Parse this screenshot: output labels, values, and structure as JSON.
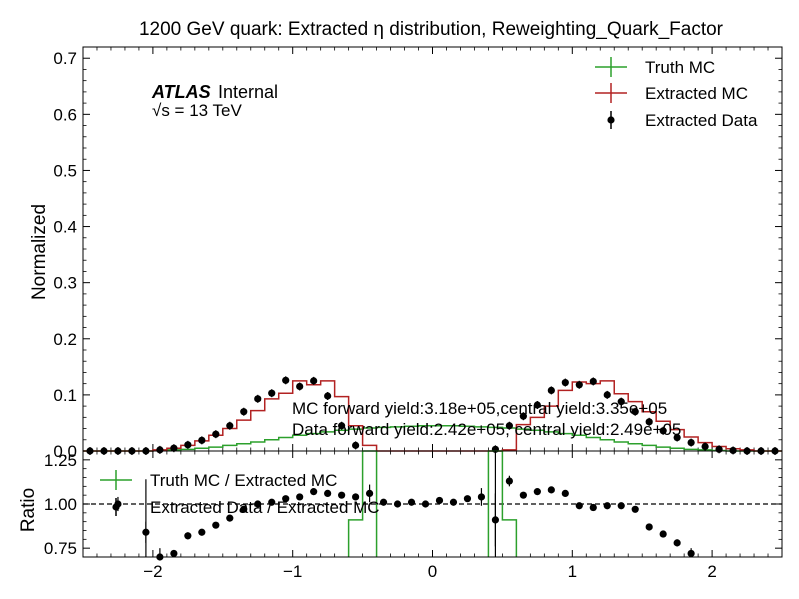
{
  "chart_data": {
    "type": "histogram",
    "title": "1200 GeV quark: Extracted η distribution, Reweighting_Quark_Factor",
    "atlas_label": "ATLAS",
    "atlas_suffix": "Internal",
    "energy_label": "√s =  13 TeV",
    "annotations": {
      "mc_yield": "MC forward yield:3.18e+05,central yield:3.35e+05",
      "data_yield": "Data forward yield:2.42e+05, central yield:2.49e+05"
    },
    "colors": {
      "truth": "#2ca02c",
      "extracted_mc": "#b22222",
      "data": "#000000"
    },
    "top_panel": {
      "ylabel": "Normalized",
      "xlim": [
        -2.5,
        2.5
      ],
      "ylim": [
        0,
        0.72
      ],
      "yticks": [
        0.0,
        0.1,
        0.2,
        0.3,
        0.4,
        0.5,
        0.6,
        0.7
      ],
      "yticklabels": [
        "0.0",
        "0.1",
        "0.2",
        "0.3",
        "0.4",
        "0.5",
        "0.6",
        "0.7"
      ],
      "legend_placement": "top-right",
      "legend": [
        "Truth MC",
        "Extracted MC",
        "Extracted Data"
      ],
      "bin_edges": [
        -2.5,
        -2.4,
        -2.3,
        -2.2,
        -2.1,
        -2.0,
        -1.9,
        -1.8,
        -1.7,
        -1.6,
        -1.5,
        -1.4,
        -1.3,
        -1.2,
        -1.1,
        -1.0,
        -0.9,
        -0.8,
        -0.7,
        -0.6,
        -0.5,
        -0.4,
        -0.3,
        -0.2,
        -0.1,
        0.0,
        0.1,
        0.2,
        0.3,
        0.4,
        0.5,
        0.6,
        0.7,
        0.8,
        0.9,
        1.0,
        1.1,
        1.2,
        1.3,
        1.4,
        1.5,
        1.6,
        1.7,
        1.8,
        1.9,
        2.0,
        2.1,
        2.2,
        2.3,
        2.4,
        2.5
      ],
      "series": [
        {
          "name": "Truth MC",
          "values": [
            0.0,
            0.0,
            0.0,
            0.0,
            0.0,
            0.001,
            0.002,
            0.003,
            0.005,
            0.007,
            0.01,
            0.013,
            0.016,
            0.02,
            0.024,
            0.028,
            0.031,
            0.034,
            0.037,
            0.039,
            0.041,
            0.042,
            0.043,
            0.044,
            0.045,
            0.045,
            0.045,
            0.044,
            0.043,
            0.042,
            0.041,
            0.039,
            0.037,
            0.034,
            0.031,
            0.028,
            0.024,
            0.02,
            0.016,
            0.013,
            0.01,
            0.007,
            0.005,
            0.003,
            0.002,
            0.001,
            0.0,
            0.0,
            0.0,
            0.0
          ]
        },
        {
          "name": "Extracted MC",
          "values": [
            0.0,
            0.0,
            0.0,
            0.0,
            0.0,
            0.002,
            0.005,
            0.01,
            0.018,
            0.028,
            0.04,
            0.055,
            0.072,
            0.093,
            0.103,
            0.125,
            0.118,
            0.125,
            0.097,
            0.045,
            0.01,
            0.0,
            0.0,
            0.0,
            0.0,
            0.0,
            0.0,
            0.0,
            0.0,
            0.0,
            0.002,
            0.047,
            0.06,
            0.08,
            0.108,
            0.123,
            0.12,
            0.125,
            0.102,
            0.088,
            0.07,
            0.053,
            0.038,
            0.025,
            0.015,
            0.008,
            0.004,
            0.002,
            0.0,
            0.0
          ]
        },
        {
          "name": "Extracted Data",
          "x": [
            -2.45,
            -2.35,
            -2.25,
            -2.15,
            -2.05,
            -1.95,
            -1.85,
            -1.75,
            -1.65,
            -1.55,
            -1.45,
            -1.35,
            -1.25,
            -1.15,
            -1.05,
            -0.95,
            -0.85,
            -0.75,
            -0.65,
            -0.55,
            0.45,
            0.55,
            0.65,
            0.75,
            0.85,
            0.95,
            1.05,
            1.15,
            1.25,
            1.35,
            1.45,
            1.55,
            1.65,
            1.75,
            1.85,
            1.95,
            2.05,
            2.15,
            2.25,
            2.35,
            2.45
          ],
          "values": [
            0.0,
            0.0,
            0.0,
            0.0,
            0.0,
            0.002,
            0.005,
            0.011,
            0.019,
            0.03,
            0.045,
            0.07,
            0.093,
            0.103,
            0.126,
            0.115,
            0.125,
            0.098,
            0.045,
            0.01,
            0.003,
            0.045,
            0.062,
            0.082,
            0.108,
            0.122,
            0.118,
            0.124,
            0.1,
            0.088,
            0.07,
            0.052,
            0.036,
            0.024,
            0.015,
            0.008,
            0.003,
            0.001,
            0.0,
            0.0,
            0.0
          ]
        }
      ]
    },
    "bottom_panel": {
      "ylabel": "Ratio",
      "xlim": [
        -2.5,
        2.5
      ],
      "ylim": [
        0.7,
        1.3
      ],
      "yticks": [
        0.75,
        1.0,
        1.25
      ],
      "yticklabels": [
        "0.75",
        "1.00",
        "1.25"
      ],
      "xticks": [
        -2,
        -1,
        0,
        1,
        2
      ],
      "xticklabels": [
        "−2",
        "−1",
        "0",
        "1",
        "2"
      ],
      "reference_line": 1.0,
      "legend_placement": "top-left",
      "legend": [
        "Truth MC / Extracted MC",
        "Extracted Data / Extracted MC"
      ],
      "truth_ratio_bins": [
        {
          "x0": -0.6,
          "x1": -0.5,
          "value": 0.91
        },
        {
          "x0": -0.5,
          "x1": -0.4,
          "value": 4.0
        },
        {
          "x0": 0.4,
          "x1": 0.5,
          "value": 20.0
        },
        {
          "x0": 0.5,
          "x1": 0.6,
          "value": 0.91
        }
      ],
      "data_ratio": {
        "x": [
          -2.25,
          -2.05,
          -1.95,
          -1.85,
          -1.75,
          -1.65,
          -1.55,
          -1.45,
          -1.35,
          -1.25,
          -1.15,
          -1.05,
          -0.95,
          -0.85,
          -0.75,
          -0.65,
          -0.55,
          -0.45,
          -0.35,
          -0.25,
          -0.15,
          -0.05,
          0.05,
          0.15,
          0.25,
          0.35,
          0.45,
          0.55,
          0.65,
          0.75,
          0.85,
          0.95,
          1.05,
          1.15,
          1.25,
          1.35,
          1.45,
          1.55,
          1.65,
          1.75,
          1.85
        ],
        "values": [
          1.0,
          0.84,
          0.7,
          0.72,
          0.82,
          0.84,
          0.88,
          0.92,
          0.97,
          1.0,
          1.01,
          1.03,
          1.04,
          1.07,
          1.06,
          1.05,
          1.04,
          1.06,
          1.01,
          1.0,
          1.01,
          1.0,
          1.02,
          1.01,
          1.03,
          1.04,
          0.91,
          1.13,
          1.05,
          1.07,
          1.08,
          1.06,
          0.99,
          0.98,
          0.99,
          0.99,
          0.97,
          0.87,
          0.83,
          0.78,
          0.72
        ],
        "errors": [
          0.04,
          0.06,
          0.05,
          0.02,
          0.02,
          0.01,
          0.01,
          0.01,
          0.01,
          0.01,
          0.01,
          0.01,
          0.01,
          0.01,
          0.01,
          0.01,
          0.02,
          0.05,
          0.01,
          0.01,
          0.01,
          0.01,
          0.01,
          0.01,
          0.01,
          0.05,
          0.15,
          0.03,
          0.01,
          0.01,
          0.01,
          0.01,
          0.01,
          0.01,
          0.01,
          0.01,
          0.01,
          0.01,
          0.01,
          0.02,
          0.03
        ]
      }
    }
  }
}
